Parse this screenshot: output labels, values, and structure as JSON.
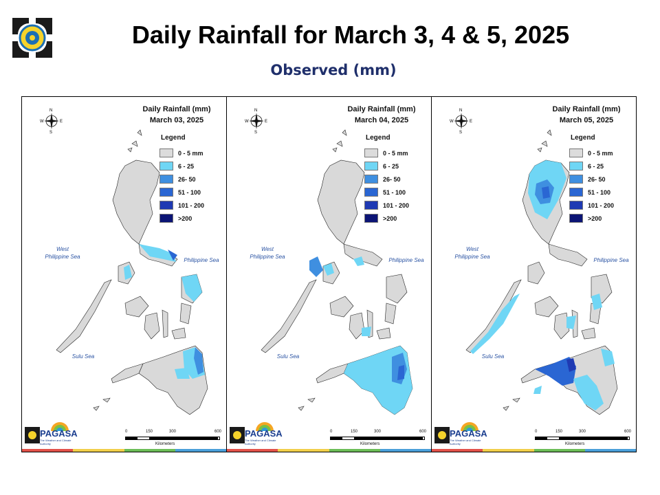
{
  "header": {
    "title": "Daily Rainfall for March 3, 4 & 5, 2025",
    "subtitle": "Observed (mm)"
  },
  "legend": {
    "title": "Legend",
    "bins": [
      {
        "label": "0 - 5 mm",
        "color": "#dcdcdc"
      },
      {
        "label": "6 - 25",
        "color": "#6fd6f5"
      },
      {
        "label": "26- 50",
        "color": "#3f8fe0"
      },
      {
        "label": "51 - 100",
        "color": "#2a66d3"
      },
      {
        "label": "101 - 200",
        "color": "#1f3ab3"
      },
      {
        "label": ">200",
        "color": "#0b1475"
      }
    ]
  },
  "panels": [
    {
      "title": "Daily Rainfall (mm)",
      "date": "March 03, 2025"
    },
    {
      "title": "Daily Rainfall (mm)",
      "date": "March 04, 2025"
    },
    {
      "title": "Daily Rainfall (mm)",
      "date": "March 05, 2025"
    }
  ],
  "labels": {
    "west_sea_line1": "West",
    "west_sea_line2": "Philippine Sea",
    "east_sea": "Philippine Sea",
    "sulu_sea": "Sulu Sea",
    "compass_n": "N",
    "compass_s": "S",
    "compass_e": "E",
    "compass_w": "W",
    "agency": "PAGASA",
    "agency_tag": "The Weather and Climate Authority"
  },
  "scale": {
    "ticks": [
      "0",
      "150",
      "300",
      "600"
    ],
    "unit": "Kilometers"
  },
  "stripe_colors": [
    "#e2524a",
    "#f1cf4a",
    "#6cbd57",
    "#4a9fd9"
  ]
}
